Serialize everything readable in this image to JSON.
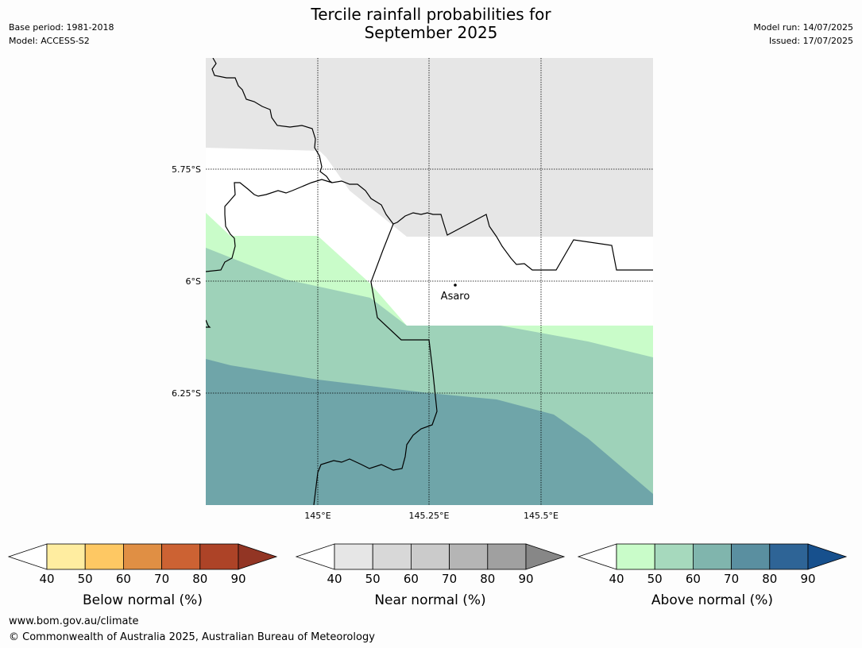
{
  "title_line1": "Tercile rainfall probabilities for",
  "title_line2": "September 2025",
  "meta": {
    "base_period": "Base period: 1981-2018",
    "model": "Model: ACCESS-S2",
    "model_run": "Model run: 14/07/2025",
    "issued": "Issued: 17/07/2025"
  },
  "map": {
    "lat_labels": [
      "5.75°S",
      "6°S",
      "6.25°S"
    ],
    "lon_labels": [
      "145°E",
      "145.25°E",
      "145.5°E"
    ],
    "place_label": "Asaro",
    "colors": {
      "near_normal_40": "#e6e6e6",
      "above_40": "#c9fcc9",
      "above_50": "#9ed2b9",
      "above_60": "#6fa5a9",
      "border": "#000000"
    }
  },
  "colorbars": [
    {
      "label": "Below normal (%)",
      "ticks": [
        "40",
        "50",
        "60",
        "70",
        "80",
        "90"
      ],
      "colors": [
        "#ffeda0",
        "#fec863",
        "#e08f44",
        "#cc6233",
        "#ad4327",
        "#923524"
      ]
    },
    {
      "label": "Near normal (%)",
      "ticks": [
        "40",
        "50",
        "60",
        "70",
        "80",
        "90"
      ],
      "colors": [
        "#e6e6e6",
        "#d8d8d8",
        "#cbcbcb",
        "#b5b5b5",
        "#a0a0a0",
        "#878787"
      ]
    },
    {
      "label": "Above normal (%)",
      "ticks": [
        "40",
        "50",
        "60",
        "70",
        "80",
        "90"
      ],
      "colors": [
        "#c9fcc9",
        "#a6d9bd",
        "#80b5ad",
        "#5a8fa0",
        "#2e6496",
        "#17508d"
      ]
    }
  ],
  "footer": {
    "url": "www.bom.gov.au/climate",
    "copyright": "© Commonwealth of Australia 2025, Australian Bureau of Meteorology"
  }
}
